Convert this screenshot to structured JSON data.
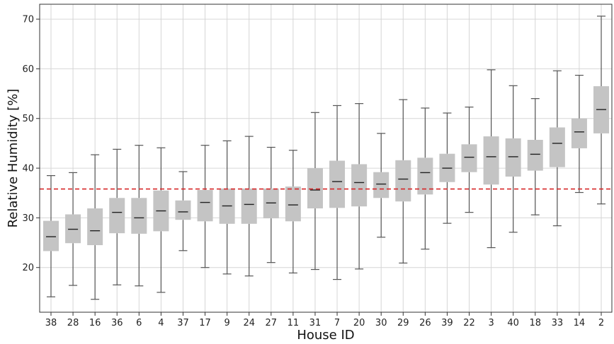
{
  "chart_data": {
    "type": "boxplot",
    "xlabel": "House ID",
    "ylabel": "Relative Humidity [%]",
    "ylim": [
      11,
      73
    ],
    "yticks": [
      20,
      30,
      40,
      50,
      60,
      70
    ],
    "grid": true,
    "reference_line": {
      "value": 35.8,
      "style": "dashed",
      "color": "#d62728"
    },
    "colors": {
      "box": "#c4c4c4",
      "median": "#222222",
      "whisker": "#555555",
      "grid": "#d6d6d6",
      "axes": "#333333"
    },
    "categories": [
      "38",
      "28",
      "16",
      "36",
      "6",
      "4",
      "37",
      "17",
      "9",
      "24",
      "27",
      "11",
      "31",
      "7",
      "20",
      "30",
      "29",
      "26",
      "39",
      "22",
      "3",
      "40",
      "18",
      "33",
      "14",
      "2"
    ],
    "boxes": [
      {
        "label": "38",
        "whislo": 14.1,
        "q1": 23.3,
        "med": 26.2,
        "q3": 29.4,
        "whishi": 38.5
      },
      {
        "label": "28",
        "whislo": 16.4,
        "q1": 24.9,
        "med": 27.7,
        "q3": 30.7,
        "whishi": 39.1
      },
      {
        "label": "16",
        "whislo": 13.6,
        "q1": 24.5,
        "med": 27.4,
        "q3": 31.9,
        "whishi": 42.7
      },
      {
        "label": "36",
        "whislo": 16.5,
        "q1": 26.9,
        "med": 31.1,
        "q3": 34.0,
        "whishi": 43.8
      },
      {
        "label": "6",
        "whislo": 16.3,
        "q1": 26.8,
        "med": 30.0,
        "q3": 34.0,
        "whishi": 44.6
      },
      {
        "label": "4",
        "whislo": 15.0,
        "q1": 27.3,
        "med": 31.4,
        "q3": 35.5,
        "whishi": 44.1
      },
      {
        "label": "37",
        "whislo": 23.4,
        "q1": 29.6,
        "med": 31.2,
        "q3": 33.5,
        "whishi": 39.3
      },
      {
        "label": "17",
        "whislo": 20.0,
        "q1": 29.3,
        "med": 33.1,
        "q3": 35.6,
        "whishi": 44.6
      },
      {
        "label": "9",
        "whislo": 18.7,
        "q1": 28.8,
        "med": 32.4,
        "q3": 35.9,
        "whishi": 45.5
      },
      {
        "label": "24",
        "whislo": 18.3,
        "q1": 28.8,
        "med": 32.7,
        "q3": 35.9,
        "whishi": 46.4
      },
      {
        "label": "27",
        "whislo": 21.0,
        "q1": 29.9,
        "med": 33.0,
        "q3": 35.9,
        "whishi": 44.2
      },
      {
        "label": "11",
        "whislo": 18.9,
        "q1": 29.3,
        "med": 32.6,
        "q3": 36.3,
        "whishi": 43.6
      },
      {
        "label": "31",
        "whislo": 19.6,
        "q1": 31.9,
        "med": 35.6,
        "q3": 40.0,
        "whishi": 51.2
      },
      {
        "label": "7",
        "whislo": 17.6,
        "q1": 32.0,
        "med": 37.3,
        "q3": 41.5,
        "whishi": 52.6
      },
      {
        "label": "20",
        "whislo": 19.7,
        "q1": 32.3,
        "med": 37.1,
        "q3": 40.8,
        "whishi": 53.0
      },
      {
        "label": "30",
        "whislo": 26.1,
        "q1": 34.0,
        "med": 36.8,
        "q3": 39.2,
        "whishi": 47.0
      },
      {
        "label": "29",
        "whislo": 20.9,
        "q1": 33.3,
        "med": 37.8,
        "q3": 41.6,
        "whishi": 53.8
      },
      {
        "label": "26",
        "whislo": 23.7,
        "q1": 34.7,
        "med": 39.1,
        "q3": 42.1,
        "whishi": 52.1
      },
      {
        "label": "39",
        "whislo": 28.9,
        "q1": 37.2,
        "med": 40.0,
        "q3": 42.9,
        "whishi": 51.1
      },
      {
        "label": "22",
        "whislo": 31.1,
        "q1": 39.2,
        "med": 42.2,
        "q3": 44.8,
        "whishi": 52.3
      },
      {
        "label": "3",
        "whislo": 24.0,
        "q1": 36.7,
        "med": 42.3,
        "q3": 46.4,
        "whishi": 59.8
      },
      {
        "label": "40",
        "whislo": 27.1,
        "q1": 38.3,
        "med": 42.3,
        "q3": 46.0,
        "whishi": 56.6
      },
      {
        "label": "18",
        "whislo": 30.6,
        "q1": 39.5,
        "med": 42.8,
        "q3": 45.7,
        "whishi": 54.0
      },
      {
        "label": "33",
        "whislo": 28.4,
        "q1": 40.2,
        "med": 45.0,
        "q3": 48.2,
        "whishi": 59.6
      },
      {
        "label": "14",
        "whislo": 35.1,
        "q1": 44.0,
        "med": 47.3,
        "q3": 50.0,
        "whishi": 58.7
      },
      {
        "label": "2",
        "whislo": 32.8,
        "q1": 47.0,
        "med": 51.8,
        "q3": 56.5,
        "whishi": 70.6
      }
    ]
  }
}
